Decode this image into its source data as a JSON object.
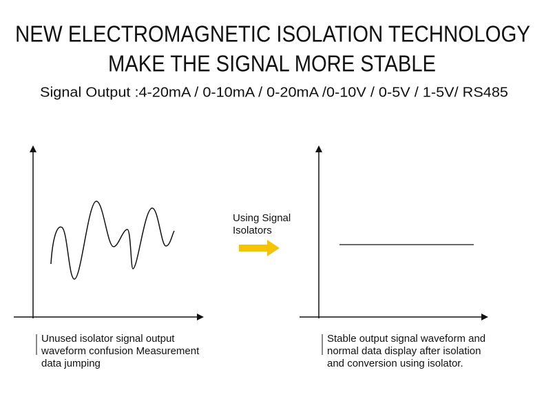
{
  "header": {
    "title_lines": [
      "NEW ELECTROMAGNETIC ISOLATION TECHNOLOGY",
      "MAKE THE SIGNAL MORE STABLE"
    ],
    "subtitle": "Signal Output :4-20mA / 0-10mA / 0-20mA /0-10V / 0-5V / 1-5V/ RS485"
  },
  "left_panel": {
    "caption_lines": [
      "Unused isolator signal output",
      "waveform confusion Measurement",
      "data jumping"
    ]
  },
  "arrow": {
    "label_lines": [
      "Using Signal",
      "Isolators"
    ]
  },
  "right_panel": {
    "caption_lines": [
      "Stable output signal waveform and",
      "normal data display after isolation",
      "and conversion using isolator."
    ]
  }
}
